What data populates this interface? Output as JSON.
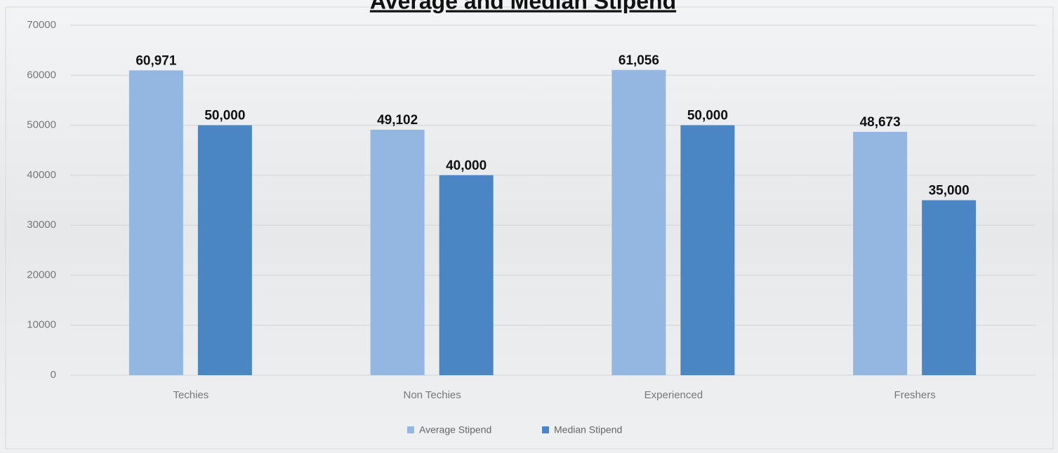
{
  "chart_data": {
    "type": "bar",
    "title": "Average and Median Stipend",
    "categories": [
      "Techies",
      "Non Techies",
      "Experienced",
      "Freshers"
    ],
    "series": [
      {
        "name": "Average Stipend",
        "color": "#94b7e2",
        "values": [
          60971,
          49102,
          61056,
          48673
        ],
        "value_labels": [
          "60,971",
          "49,102",
          "61,056",
          "48,673"
        ]
      },
      {
        "name": "Median Stipend",
        "color": "#4a86c4",
        "values": [
          50000,
          40000,
          50000,
          35000
        ],
        "value_labels": [
          "50,000",
          "40,000",
          "50,000",
          "35,000"
        ]
      }
    ],
    "ylim": [
      0,
      70000
    ],
    "yticks": [
      0,
      10000,
      20000,
      30000,
      40000,
      50000,
      60000,
      70000
    ],
    "grid": true,
    "legend": "bottom"
  }
}
